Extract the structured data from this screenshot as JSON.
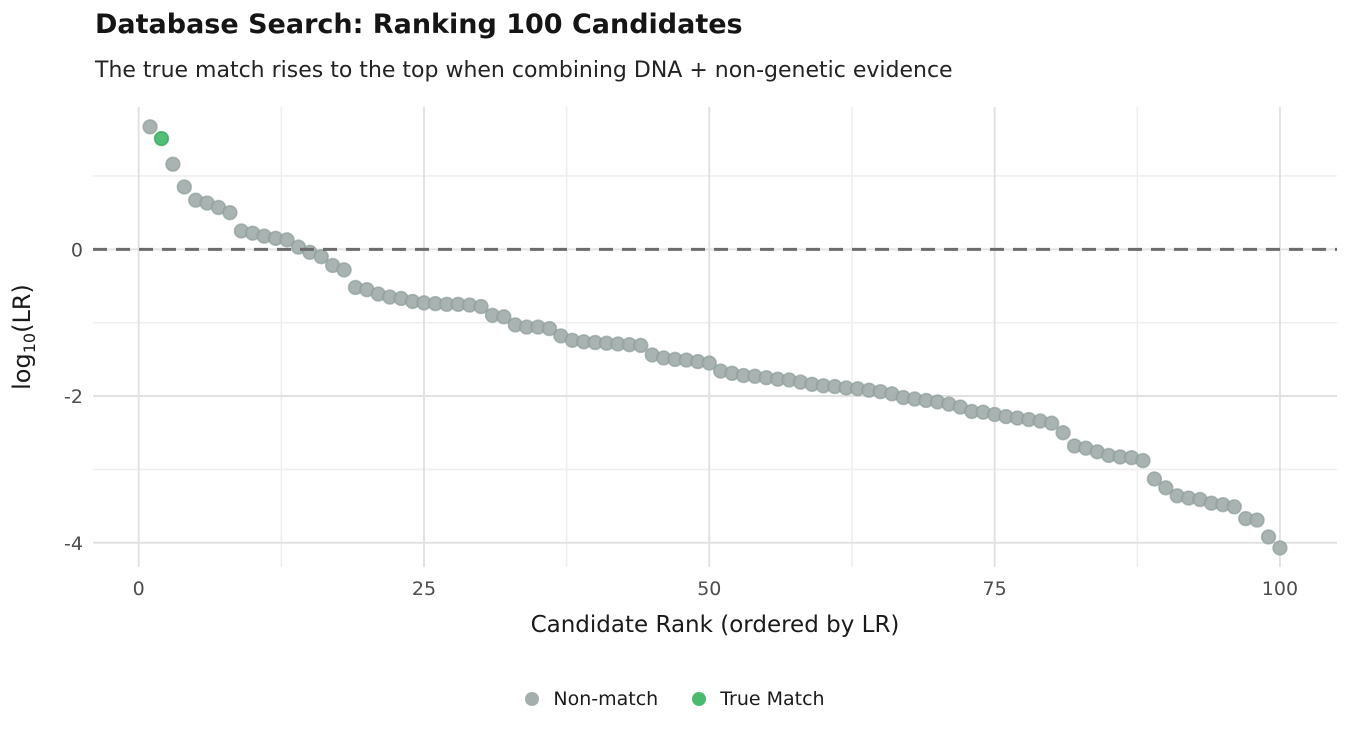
{
  "header": {
    "title": "Database Search: Ranking 100 Candidates",
    "subtitle": "The true match rises to the top when combining DNA + non-genetic evidence"
  },
  "chart_data": {
    "type": "scatter",
    "title": "Database Search: Ranking 100 Candidates",
    "subtitle": "The true match rises to the top when combining DNA + non-genetic evidence",
    "xlabel": "Candidate Rank (ordered by LR)",
    "ylabel": "log₁₀(LR)",
    "ylabel_parts": {
      "pre": "log",
      "sub": "10",
      "post": "(LR)"
    },
    "xlim": [
      -4,
      105
    ],
    "ylim": [
      -4.33,
      1.94
    ],
    "x_major_ticks": [
      0,
      25,
      50,
      75,
      100
    ],
    "x_tick_labels": [
      "0",
      "25",
      "50",
      "75",
      "100"
    ],
    "x_minor_ticks": [
      12.5,
      37.5,
      62.5,
      87.5
    ],
    "y_major_ticks": [
      0,
      -2,
      -4
    ],
    "y_tick_labels": [
      "0",
      "-2",
      "-4"
    ],
    "y_minor_ticks": [
      1,
      -1,
      -3
    ],
    "grid": true,
    "legend_position": "bottom",
    "threshold": {
      "y": 0,
      "style": "dashed",
      "color": "#6b6b6b"
    },
    "legend": [
      {
        "label": "Non-match",
        "color": "#a4afad"
      },
      {
        "label": "True Match",
        "color": "#49ba6e"
      }
    ],
    "series": [
      {
        "name": "Non-match",
        "fill": "#a4afad",
        "stroke": "#8a9b98",
        "points": [
          [
            1,
            1.67
          ],
          [
            3,
            1.16
          ],
          [
            4,
            0.85
          ],
          [
            5,
            0.67
          ],
          [
            6,
            0.63
          ],
          [
            7,
            0.57
          ],
          [
            8,
            0.5
          ],
          [
            9,
            0.25
          ],
          [
            10,
            0.22
          ],
          [
            11,
            0.18
          ],
          [
            12,
            0.15
          ],
          [
            13,
            0.13
          ],
          [
            14,
            0.03
          ],
          [
            15,
            -0.04
          ],
          [
            16,
            -0.1
          ],
          [
            17,
            -0.22
          ],
          [
            18,
            -0.28
          ],
          [
            19,
            -0.52
          ],
          [
            20,
            -0.55
          ],
          [
            21,
            -0.61
          ],
          [
            22,
            -0.65
          ],
          [
            23,
            -0.67
          ],
          [
            24,
            -0.71
          ],
          [
            25,
            -0.73
          ],
          [
            26,
            -0.74
          ],
          [
            27,
            -0.75
          ],
          [
            28,
            -0.75
          ],
          [
            29,
            -0.76
          ],
          [
            30,
            -0.78
          ],
          [
            31,
            -0.9
          ],
          [
            32,
            -0.92
          ],
          [
            33,
            -1.03
          ],
          [
            34,
            -1.06
          ],
          [
            35,
            -1.06
          ],
          [
            36,
            -1.08
          ],
          [
            37,
            -1.18
          ],
          [
            38,
            -1.24
          ],
          [
            39,
            -1.26
          ],
          [
            40,
            -1.27
          ],
          [
            41,
            -1.28
          ],
          [
            42,
            -1.29
          ],
          [
            43,
            -1.3
          ],
          [
            44,
            -1.31
          ],
          [
            45,
            -1.44
          ],
          [
            46,
            -1.48
          ],
          [
            47,
            -1.5
          ],
          [
            48,
            -1.51
          ],
          [
            49,
            -1.53
          ],
          [
            50,
            -1.55
          ],
          [
            51,
            -1.66
          ],
          [
            52,
            -1.69
          ],
          [
            53,
            -1.72
          ],
          [
            54,
            -1.73
          ],
          [
            55,
            -1.75
          ],
          [
            56,
            -1.77
          ],
          [
            57,
            -1.78
          ],
          [
            58,
            -1.81
          ],
          [
            59,
            -1.84
          ],
          [
            60,
            -1.86
          ],
          [
            61,
            -1.87
          ],
          [
            62,
            -1.89
          ],
          [
            63,
            -1.9
          ],
          [
            64,
            -1.92
          ],
          [
            65,
            -1.94
          ],
          [
            66,
            -1.97
          ],
          [
            67,
            -2.02
          ],
          [
            68,
            -2.04
          ],
          [
            69,
            -2.06
          ],
          [
            70,
            -2.08
          ],
          [
            71,
            -2.11
          ],
          [
            72,
            -2.15
          ],
          [
            73,
            -2.21
          ],
          [
            74,
            -2.22
          ],
          [
            75,
            -2.25
          ],
          [
            76,
            -2.28
          ],
          [
            77,
            -2.3
          ],
          [
            78,
            -2.32
          ],
          [
            79,
            -2.34
          ],
          [
            80,
            -2.37
          ],
          [
            81,
            -2.5
          ],
          [
            82,
            -2.68
          ],
          [
            83,
            -2.71
          ],
          [
            84,
            -2.76
          ],
          [
            85,
            -2.81
          ],
          [
            86,
            -2.83
          ],
          [
            87,
            -2.84
          ],
          [
            88,
            -2.88
          ],
          [
            89,
            -3.13
          ],
          [
            90,
            -3.25
          ],
          [
            91,
            -3.36
          ],
          [
            92,
            -3.39
          ],
          [
            93,
            -3.41
          ],
          [
            94,
            -3.46
          ],
          [
            95,
            -3.48
          ],
          [
            96,
            -3.51
          ],
          [
            97,
            -3.67
          ],
          [
            98,
            -3.69
          ],
          [
            99,
            -3.92
          ],
          [
            100,
            -4.07
          ]
        ]
      },
      {
        "name": "True Match",
        "fill": "#49ba6e",
        "stroke": "#2b9e53",
        "points": [
          [
            2,
            1.51
          ]
        ]
      }
    ]
  },
  "colors": {
    "grid_major": "#e2e2e2",
    "grid_minor": "#efefef",
    "tick_label": "#4d4d4d",
    "axis_title": "#1a1a1a",
    "non_match": "#a4afad",
    "true_match": "#49ba6e",
    "threshold": "#6b6b6b"
  }
}
